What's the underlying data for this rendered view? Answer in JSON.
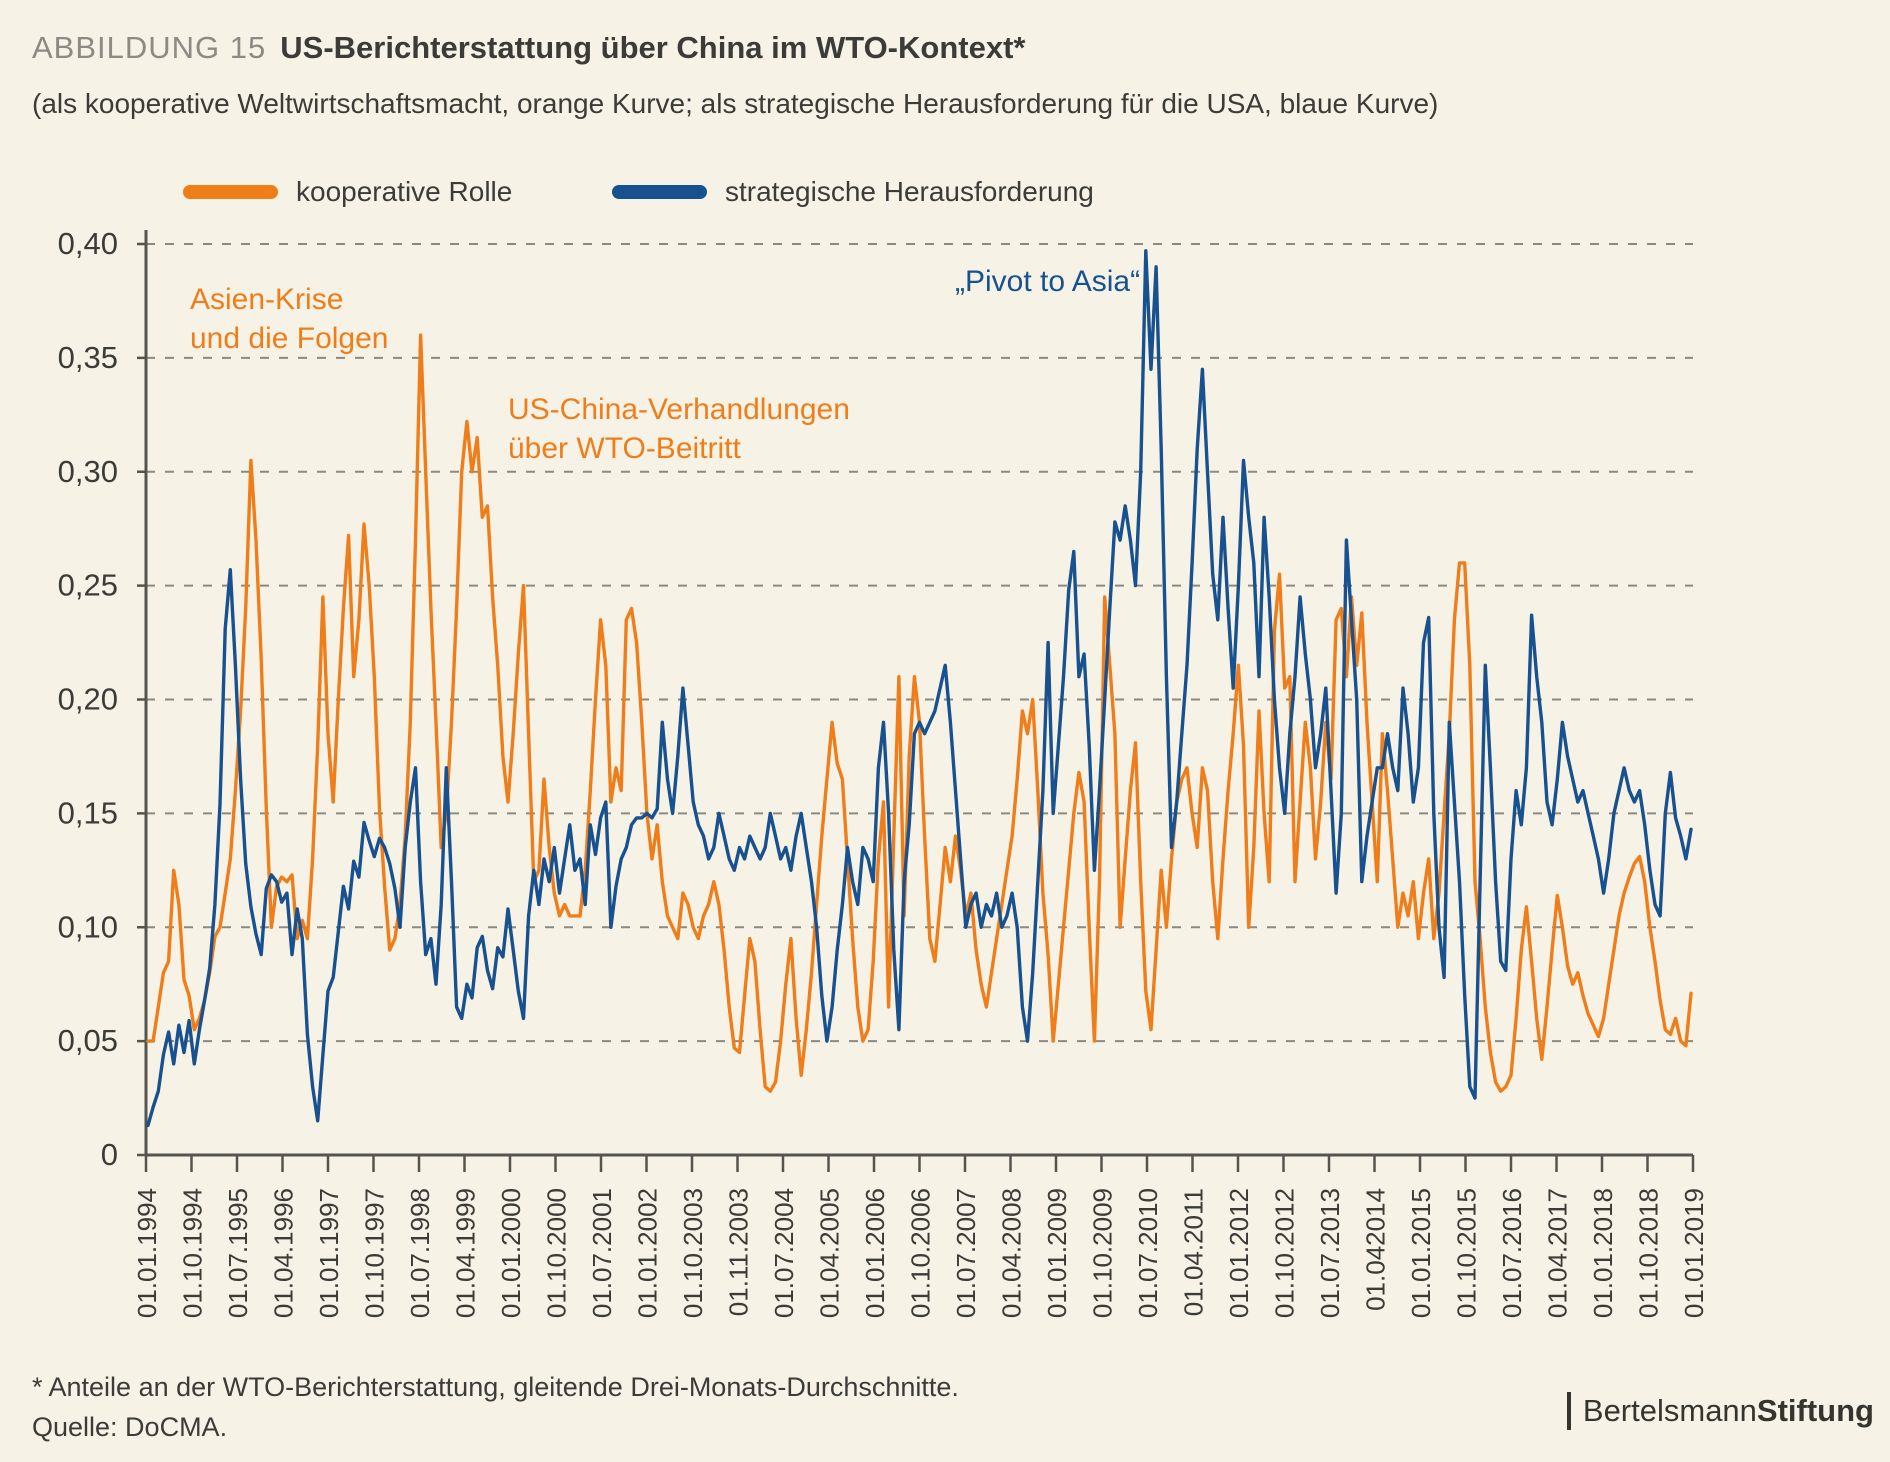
{
  "figure": {
    "label": "ABBILDUNG 15",
    "title": "US-Berichterstattung über China im WTO-Kontext*",
    "subtitle": "(als kooperative Weltwirtschaftsmacht, orange Kurve; als strategische Herausforderung für die USA, blaue Kurve)"
  },
  "legend": [
    {
      "label": "kooperative Rolle",
      "color": "#ef7d1a"
    },
    {
      "label": "strategische Herausforderung",
      "color": "#17518f"
    }
  ],
  "annotations": [
    {
      "name": "asien-krise",
      "color": "#ef7d1a",
      "lines": [
        "Asien-Krise",
        "und die Folgen"
      ]
    },
    {
      "name": "wto-beitritt",
      "color": "#ef7d1a",
      "lines": [
        "US-China-Verhandlungen",
        "über WTO-Beitritt"
      ]
    },
    {
      "name": "pivot-to-asia",
      "color": "#17518f",
      "lines": [
        "„Pivot to Asia“"
      ]
    }
  ],
  "footnote": "* Anteile an der WTO-Berichterstattung, gleitende Drei-Monats-Durchschnitte.",
  "source": "Quelle: DoCMA.",
  "logo": {
    "bar": "|",
    "regular": "Bertelsmann",
    "bold": "Stiftung"
  },
  "chart_data": {
    "type": "line",
    "title": "US-Berichterstattung über China im WTO-Kontext",
    "xlabel": "",
    "ylabel": "Anteile an der WTO-Berichterstattung",
    "ylim": [
      0,
      0.4
    ],
    "grid": "dashed-horizontal",
    "legend_position": "top-left",
    "y_tick_labels": [
      "0,40",
      "0,35",
      "0,30",
      "0,25",
      "0,20",
      "0,15",
      "0,10",
      "0,05",
      "0"
    ],
    "y_tick_values": [
      0.4,
      0.35,
      0.3,
      0.25,
      0.2,
      0.15,
      0.1,
      0.05,
      0
    ],
    "x_tick_labels": [
      "01.01.1994",
      "01.10.1994",
      "01.07.1995",
      "01.04.1996",
      "01.01.1997",
      "01.10.1997",
      "01.07.1998",
      "01.04.1999",
      "01.01.2000",
      "01.10.2000",
      "01.07.2001",
      "01.01.2002",
      "01.10.2003",
      "01.11.2003",
      "01.07.2004",
      "01.04.2005",
      "01.01.2006",
      "01.10.2006",
      "01.07.2007",
      "01.04.2008",
      "01.01.2009",
      "01.10.2009",
      "01.07.2010",
      "01.04.2011",
      "01.01.2012",
      "01.10.2012",
      "01.07.2013",
      "01.042014",
      "01.01.2015",
      "01.10.2015",
      "01.07.2016",
      "01.04.2017",
      "01.01.2018",
      "01.10.2018",
      "01.01.2019"
    ],
    "x_range_note": "monthly values Jan 1994 - Jan 2019, three-month moving averages",
    "series": [
      {
        "name": "kooperative Rolle",
        "color": "#ef7d1a",
        "values": [
          0.05,
          0.05,
          0.065,
          0.08,
          0.085,
          0.125,
          0.11,
          0.077,
          0.07,
          0.055,
          0.06,
          0.068,
          0.08,
          0.096,
          0.1,
          0.115,
          0.13,
          0.16,
          0.195,
          0.24,
          0.305,
          0.27,
          0.218,
          0.152,
          0.1,
          0.118,
          0.122,
          0.12,
          0.123,
          0.095,
          0.103,
          0.095,
          0.13,
          0.18,
          0.245,
          0.185,
          0.155,
          0.2,
          0.24,
          0.272,
          0.21,
          0.235,
          0.277,
          0.25,
          0.21,
          0.152,
          0.118,
          0.09,
          0.095,
          0.11,
          0.14,
          0.19,
          0.27,
          0.36,
          0.3,
          0.24,
          0.19,
          0.135,
          0.15,
          0.19,
          0.24,
          0.3,
          0.322,
          0.3,
          0.315,
          0.28,
          0.285,
          0.245,
          0.215,
          0.175,
          0.155,
          0.185,
          0.22,
          0.25,
          0.185,
          0.12,
          0.125,
          0.165,
          0.135,
          0.115,
          0.105,
          0.11,
          0.105,
          0.105,
          0.105,
          0.125,
          0.16,
          0.2,
          0.235,
          0.215,
          0.155,
          0.17,
          0.16,
          0.235,
          0.24,
          0.225,
          0.19,
          0.15,
          0.13,
          0.145,
          0.12,
          0.105,
          0.1,
          0.095,
          0.115,
          0.11,
          0.1,
          0.095,
          0.105,
          0.11,
          0.12,
          0.11,
          0.09,
          0.065,
          0.047,
          0.045,
          0.07,
          0.095,
          0.085,
          0.055,
          0.03,
          0.028,
          0.032,
          0.05,
          0.075,
          0.095,
          0.06,
          0.035,
          0.055,
          0.08,
          0.11,
          0.14,
          0.165,
          0.19,
          0.172,
          0.165,
          0.13,
          0.095,
          0.065,
          0.05,
          0.055,
          0.085,
          0.13,
          0.155,
          0.065,
          0.14,
          0.21,
          0.105,
          0.175,
          0.21,
          0.19,
          0.14,
          0.095,
          0.085,
          0.11,
          0.135,
          0.12,
          0.14,
          0.125,
          0.105,
          0.115,
          0.09,
          0.075,
          0.065,
          0.08,
          0.095,
          0.11,
          0.125,
          0.14,
          0.165,
          0.195,
          0.185,
          0.2,
          0.16,
          0.115,
          0.088,
          0.05,
          0.075,
          0.1,
          0.125,
          0.15,
          0.168,
          0.155,
          0.1,
          0.05,
          0.12,
          0.245,
          0.215,
          0.185,
          0.1,
          0.13,
          0.16,
          0.181,
          0.12,
          0.072,
          0.055,
          0.09,
          0.125,
          0.1,
          0.13,
          0.155,
          0.165,
          0.17,
          0.15,
          0.135,
          0.17,
          0.16,
          0.12,
          0.095,
          0.13,
          0.16,
          0.185,
          0.215,
          0.18,
          0.1,
          0.135,
          0.195,
          0.15,
          0.12,
          0.23,
          0.255,
          0.205,
          0.21,
          0.12,
          0.155,
          0.19,
          0.17,
          0.13,
          0.155,
          0.19,
          0.165,
          0.235,
          0.24,
          0.21,
          0.245,
          0.215,
          0.238,
          0.19,
          0.155,
          0.12,
          0.185,
          0.16,
          0.13,
          0.1,
          0.115,
          0.105,
          0.12,
          0.095,
          0.115,
          0.13,
          0.095,
          0.115,
          0.15,
          0.185,
          0.235,
          0.26,
          0.26,
          0.215,
          0.12,
          0.095,
          0.065,
          0.045,
          0.032,
          0.028,
          0.03,
          0.035,
          0.06,
          0.09,
          0.109,
          0.085,
          0.06,
          0.042,
          0.065,
          0.09,
          0.114,
          0.1,
          0.083,
          0.075,
          0.08,
          0.07,
          0.062,
          0.057,
          0.052,
          0.06,
          0.075,
          0.09,
          0.105,
          0.115,
          0.122,
          0.128,
          0.131,
          0.12,
          0.1,
          0.085,
          0.068,
          0.055,
          0.053,
          0.06,
          0.05,
          0.048,
          0.071
        ]
      },
      {
        "name": "strategische Herausforderung",
        "color": "#17518f",
        "values": [
          0.013,
          0.021,
          0.028,
          0.044,
          0.054,
          0.04,
          0.057,
          0.045,
          0.059,
          0.04,
          0.055,
          0.068,
          0.082,
          0.11,
          0.154,
          0.231,
          0.257,
          0.215,
          0.165,
          0.128,
          0.109,
          0.097,
          0.088,
          0.117,
          0.123,
          0.12,
          0.111,
          0.115,
          0.088,
          0.108,
          0.095,
          0.053,
          0.03,
          0.015,
          0.044,
          0.072,
          0.078,
          0.098,
          0.118,
          0.108,
          0.129,
          0.122,
          0.146,
          0.138,
          0.131,
          0.139,
          0.135,
          0.128,
          0.117,
          0.1,
          0.135,
          0.155,
          0.17,
          0.12,
          0.088,
          0.095,
          0.075,
          0.11,
          0.17,
          0.12,
          0.065,
          0.06,
          0.075,
          0.069,
          0.091,
          0.096,
          0.081,
          0.073,
          0.091,
          0.087,
          0.108,
          0.09,
          0.072,
          0.06,
          0.105,
          0.125,
          0.11,
          0.13,
          0.12,
          0.135,
          0.115,
          0.13,
          0.145,
          0.125,
          0.13,
          0.11,
          0.145,
          0.132,
          0.148,
          0.155,
          0.1,
          0.118,
          0.13,
          0.135,
          0.145,
          0.148,
          0.148,
          0.15,
          0.148,
          0.152,
          0.19,
          0.165,
          0.15,
          0.175,
          0.205,
          0.18,
          0.155,
          0.145,
          0.14,
          0.13,
          0.135,
          0.15,
          0.14,
          0.13,
          0.125,
          0.135,
          0.13,
          0.14,
          0.135,
          0.13,
          0.135,
          0.15,
          0.14,
          0.13,
          0.135,
          0.125,
          0.14,
          0.15,
          0.135,
          0.12,
          0.1,
          0.07,
          0.05,
          0.065,
          0.09,
          0.11,
          0.135,
          0.12,
          0.11,
          0.135,
          0.13,
          0.12,
          0.17,
          0.19,
          0.15,
          0.09,
          0.055,
          0.12,
          0.145,
          0.185,
          0.19,
          0.185,
          0.19,
          0.195,
          0.205,
          0.215,
          0.19,
          0.16,
          0.13,
          0.1,
          0.11,
          0.115,
          0.1,
          0.11,
          0.105,
          0.115,
          0.1,
          0.105,
          0.115,
          0.1,
          0.065,
          0.05,
          0.08,
          0.12,
          0.16,
          0.225,
          0.15,
          0.18,
          0.21,
          0.248,
          0.265,
          0.21,
          0.22,
          0.18,
          0.125,
          0.16,
          0.2,
          0.24,
          0.278,
          0.27,
          0.285,
          0.27,
          0.25,
          0.3,
          0.397,
          0.345,
          0.39,
          0.31,
          0.21,
          0.135,
          0.155,
          0.185,
          0.215,
          0.26,
          0.31,
          0.345,
          0.3,
          0.255,
          0.235,
          0.28,
          0.24,
          0.205,
          0.25,
          0.305,
          0.28,
          0.26,
          0.21,
          0.28,
          0.245,
          0.2,
          0.17,
          0.15,
          0.185,
          0.21,
          0.245,
          0.22,
          0.2,
          0.17,
          0.185,
          0.205,
          0.16,
          0.115,
          0.15,
          0.27,
          0.235,
          0.2,
          0.12,
          0.14,
          0.155,
          0.17,
          0.17,
          0.185,
          0.17,
          0.16,
          0.205,
          0.185,
          0.155,
          0.17,
          0.225,
          0.236,
          0.15,
          0.1,
          0.078,
          0.19,
          0.155,
          0.12,
          0.07,
          0.03,
          0.025,
          0.12,
          0.215,
          0.17,
          0.12,
          0.085,
          0.081,
          0.13,
          0.16,
          0.145,
          0.17,
          0.237,
          0.21,
          0.19,
          0.155,
          0.145,
          0.165,
          0.19,
          0.175,
          0.165,
          0.155,
          0.16,
          0.15,
          0.14,
          0.13,
          0.115,
          0.13,
          0.15,
          0.16,
          0.17,
          0.16,
          0.155,
          0.16,
          0.145,
          0.125,
          0.11,
          0.105,
          0.15,
          0.168,
          0.148,
          0.14,
          0.13,
          0.143
        ]
      }
    ],
    "axis_color": "#55544e",
    "grid_color": "#8a8a83",
    "tick_label_color": "#3b3b38"
  }
}
